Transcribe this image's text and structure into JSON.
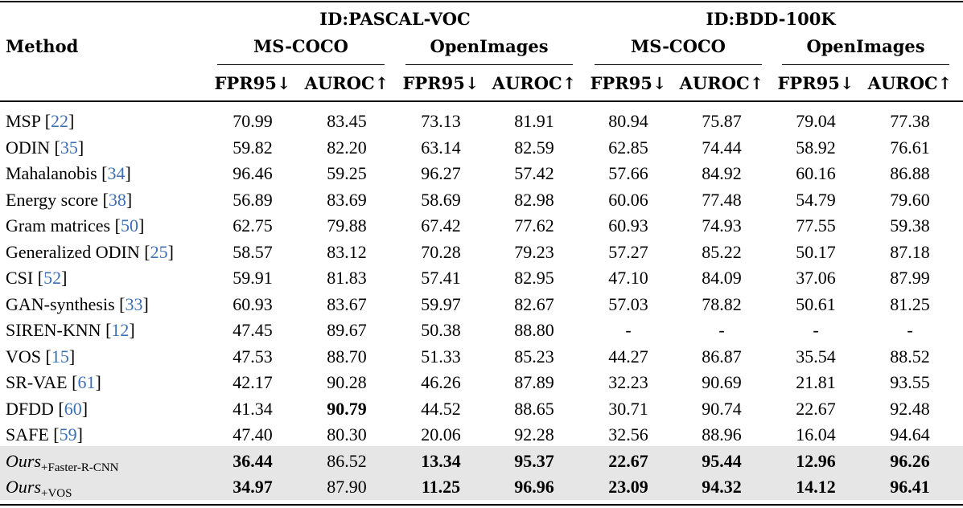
{
  "header": {
    "method_label": "Method",
    "groups": [
      {
        "label": "ID:PASCAL-VOC",
        "subgroups": [
          "MS-COCO",
          "OpenImages"
        ]
      },
      {
        "label": "ID:BDD-100K",
        "subgroups": [
          "MS-COCO",
          "OpenImages"
        ]
      }
    ],
    "metrics": [
      "FPR95↓",
      "AUROC↑",
      "FPR95↓",
      "AUROC↑",
      "FPR95↓",
      "AUROC↑",
      "FPR95↓",
      "AUROC↑"
    ]
  },
  "rows": [
    {
      "method": "MSP",
      "ref": "22",
      "values": [
        "70.99",
        "83.45",
        "73.13",
        "81.91",
        "80.94",
        "75.87",
        "79.04",
        "77.38"
      ],
      "bold": [],
      "shaded": false
    },
    {
      "method": "ODIN",
      "ref": "35",
      "values": [
        "59.82",
        "82.20",
        "63.14",
        "82.59",
        "62.85",
        "74.44",
        "58.92",
        "76.61"
      ],
      "bold": [],
      "shaded": false
    },
    {
      "method": "Mahalanobis",
      "ref": "34",
      "values": [
        "96.46",
        "59.25",
        "96.27",
        "57.42",
        "57.66",
        "84.92",
        "60.16",
        "86.88"
      ],
      "bold": [],
      "shaded": false
    },
    {
      "method": "Energy score",
      "ref": "38",
      "values": [
        "56.89",
        "83.69",
        "58.69",
        "82.98",
        "60.06",
        "77.48",
        "54.79",
        "79.60"
      ],
      "bold": [],
      "shaded": false
    },
    {
      "method": "Gram matrices",
      "ref": "50",
      "values": [
        "62.75",
        "79.88",
        "67.42",
        "77.62",
        "60.93",
        "74.93",
        "77.55",
        "59.38"
      ],
      "bold": [],
      "shaded": false
    },
    {
      "method": "Generalized ODIN",
      "ref": "25",
      "values": [
        "58.57",
        "83.12",
        "70.28",
        "79.23",
        "57.27",
        "85.22",
        "50.17",
        "87.18"
      ],
      "bold": [],
      "shaded": false
    },
    {
      "method": "CSI",
      "ref": "52",
      "values": [
        "59.91",
        "81.83",
        "57.41",
        "82.95",
        "47.10",
        "84.09",
        "37.06",
        "87.99"
      ],
      "bold": [],
      "shaded": false
    },
    {
      "method": "GAN-synthesis",
      "ref": "33",
      "values": [
        "60.93",
        "83.67",
        "59.97",
        "82.67",
        "57.03",
        "78.82",
        "50.61",
        "81.25"
      ],
      "bold": [],
      "shaded": false
    },
    {
      "method": "SIREN-KNN",
      "ref": "12",
      "values": [
        "47.45",
        "89.67",
        "50.38",
        "88.80",
        "-",
        "-",
        "-",
        "-"
      ],
      "bold": [],
      "shaded": false
    },
    {
      "method": "VOS",
      "ref": "15",
      "values": [
        "47.53",
        "88.70",
        "51.33",
        "85.23",
        "44.27",
        "86.87",
        "35.54",
        "88.52"
      ],
      "bold": [],
      "shaded": false
    },
    {
      "method": "SR-VAE",
      "ref": "61",
      "values": [
        "42.17",
        "90.28",
        "46.26",
        "87.89",
        "32.23",
        "90.69",
        "21.81",
        "93.55"
      ],
      "bold": [],
      "shaded": false
    },
    {
      "method": "DFDD",
      "ref": "60",
      "values": [
        "41.34",
        "90.79",
        "44.52",
        "88.65",
        "30.71",
        "90.74",
        "22.67",
        "92.48"
      ],
      "bold": [
        1
      ],
      "shaded": false
    },
    {
      "method": "SAFE",
      "ref": "59",
      "values": [
        "47.40",
        "80.30",
        "20.06",
        "92.28",
        "32.56",
        "88.96",
        "16.04",
        "94.64"
      ],
      "bold": [],
      "shaded": false
    },
    {
      "method": "Ours",
      "sub": "+Faster-R-CNN",
      "values": [
        "36.44",
        "86.52",
        "13.34",
        "95.37",
        "22.67",
        "95.44",
        "12.96",
        "96.26"
      ],
      "bold": [
        0,
        2,
        3,
        4,
        5,
        6,
        7
      ],
      "shaded": true
    },
    {
      "method": "Ours",
      "sub": "+VOS",
      "values": [
        "34.97",
        "87.90",
        "11.25",
        "96.96",
        "23.09",
        "94.32",
        "14.12",
        "96.41"
      ],
      "bold": [
        0,
        2,
        3,
        4,
        5,
        6,
        7
      ],
      "shaded": true
    }
  ]
}
